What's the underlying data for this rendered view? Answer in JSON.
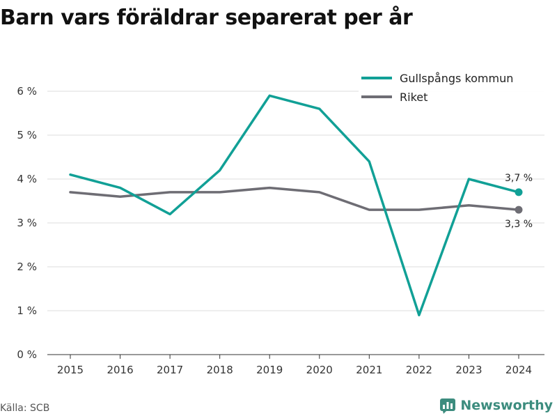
{
  "chart_data": {
    "type": "line",
    "title": "Barn vars föräldrar separerat per år",
    "categories": [
      "2015",
      "2016",
      "2017",
      "2018",
      "2019",
      "2020",
      "2021",
      "2022",
      "2023",
      "2024"
    ],
    "series": [
      {
        "name": "Gullspångs kommun",
        "color": "#11a096",
        "values": [
          4.1,
          3.8,
          3.2,
          4.2,
          5.9,
          5.6,
          4.4,
          0.9,
          4.0,
          3.7
        ],
        "end_label": "3,7 %"
      },
      {
        "name": "Riket",
        "color": "#6e6d74",
        "values": [
          3.7,
          3.6,
          3.7,
          3.7,
          3.8,
          3.7,
          3.3,
          3.3,
          3.4,
          3.3
        ],
        "end_label": "3,3 %"
      }
    ],
    "y_ticks": [
      0,
      1,
      2,
      3,
      4,
      5,
      6
    ],
    "y_tick_labels": [
      "0 %",
      "1 %",
      "2 %",
      "3 %",
      "4 %",
      "5 %",
      "6 %"
    ],
    "ylim": [
      0,
      6
    ],
    "grid": true,
    "legend_position": "top-right"
  },
  "source": "Källa: SCB",
  "brand": {
    "name": "Newsworthy",
    "color": "#3c8c7e",
    "icon": "newsworthy-logo-icon"
  }
}
